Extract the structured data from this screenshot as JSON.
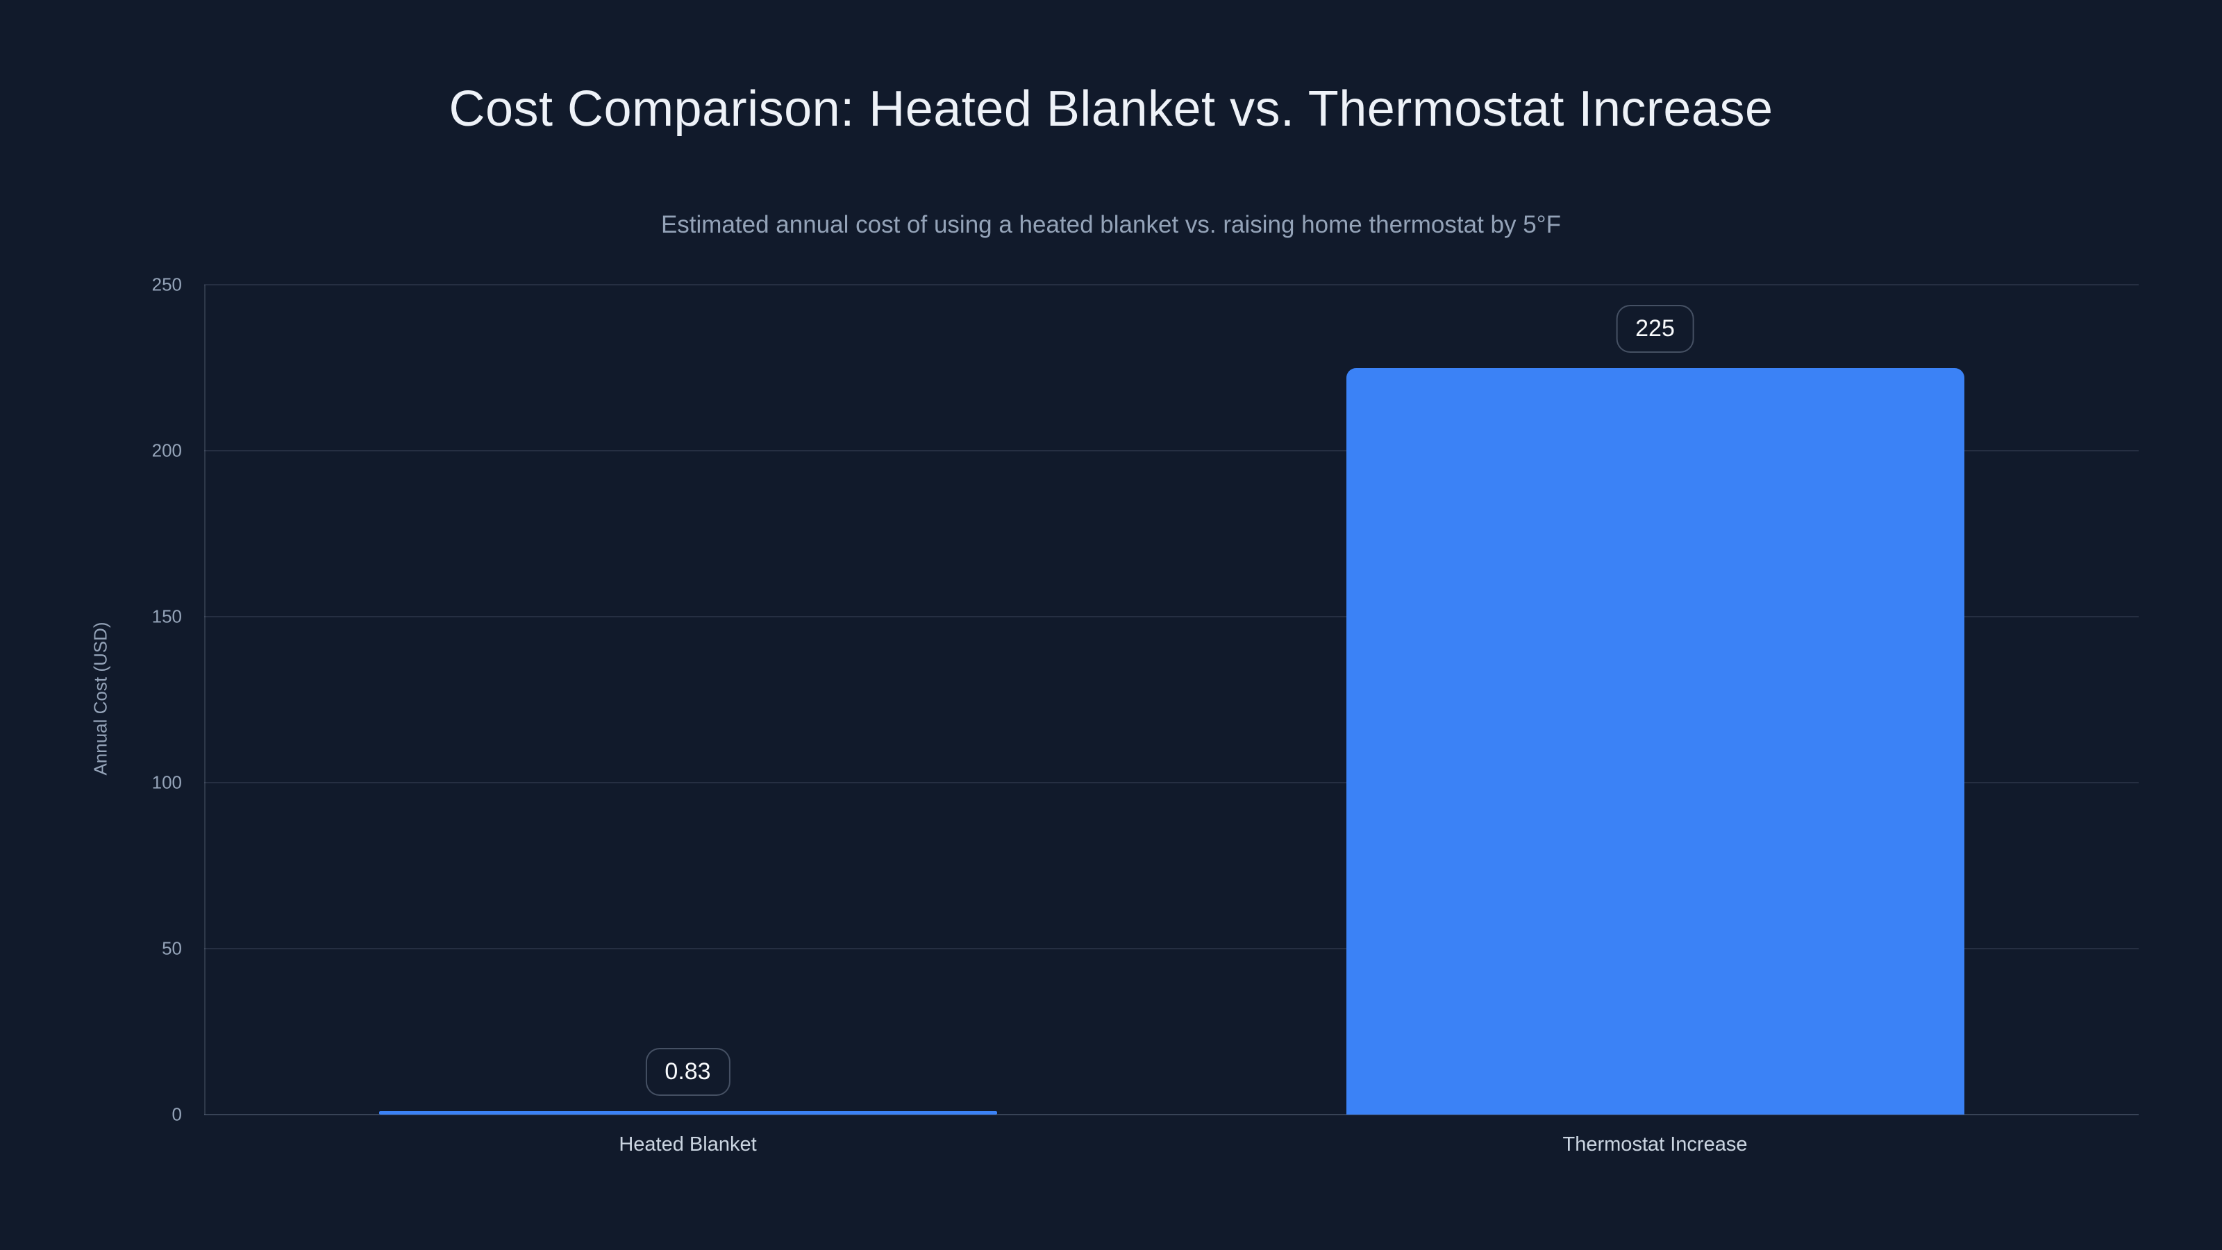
{
  "chart_data": {
    "type": "bar",
    "title": "Cost Comparison: Heated Blanket vs. Thermostat Increase",
    "subtitle": "Estimated annual cost of using a heated blanket vs. raising home thermostat by 5°F",
    "ylabel": "Annual Cost (USD)",
    "xlabel": "",
    "categories": [
      "Heated Blanket",
      "Thermostat Increase"
    ],
    "values": [
      0.83,
      225
    ],
    "data_labels": [
      "0.83",
      "225"
    ],
    "yticks": [
      0,
      50,
      100,
      150,
      200,
      250
    ],
    "ylim": [
      0,
      250
    ],
    "grid": true,
    "legend": false,
    "colors": {
      "background": "#111a2b",
      "bar": "#3b82f6",
      "title": "#eef2f8",
      "subtitle": "#94a3b8",
      "tick_label": "#94a3b8",
      "category_label": "#cbd5e1",
      "gridline": "rgba(148,163,184,0.16)",
      "axis_line": "rgba(148,163,184,0.30)",
      "badge_border": "rgba(148,163,184,0.40)",
      "badge_text": "#f8fafc"
    }
  }
}
